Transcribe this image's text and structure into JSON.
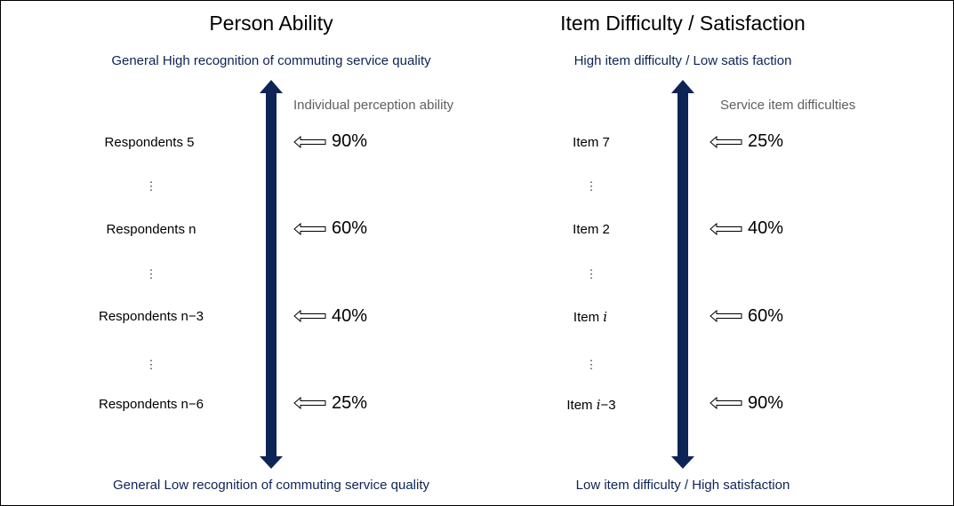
{
  "colors": {
    "accent": "#0d2456",
    "subtitle": "#5f5f5f",
    "text": "#000000"
  },
  "left": {
    "title": "Person Ability",
    "top_caption": "General High recognition of commuting service quality",
    "bottom_caption": "General Low recognition of commuting service quality",
    "axis_label": "Individual perception ability",
    "rows": [
      {
        "label": "Respondents 5",
        "value": "90%"
      },
      {
        "label": "Respondents n",
        "value": "60%"
      },
      {
        "label": "Respondents n−3",
        "value": "40%"
      },
      {
        "label": "Respondents n−6",
        "value": "25%"
      }
    ]
  },
  "right": {
    "title": "Item Difficulty / Satisfaction",
    "top_caption": "High item difficulty / Low satis faction",
    "bottom_caption": "Low item difficulty / High satisfaction",
    "axis_label": "Service item difficulties",
    "rows": [
      {
        "prefix": "Item 7",
        "var": "",
        "suffix": "",
        "value": "25%"
      },
      {
        "prefix": "Item 2",
        "var": "",
        "suffix": "",
        "value": "40%"
      },
      {
        "prefix": "Item ",
        "var": "i",
        "suffix": "",
        "value": "60%"
      },
      {
        "prefix": "Item ",
        "var": "i",
        "suffix": "−3",
        "value": "90%"
      }
    ]
  },
  "ellipsis": "⋮",
  "icons": [
    "double-arrow-vertical-icon",
    "hollow-left-arrow-icon"
  ]
}
